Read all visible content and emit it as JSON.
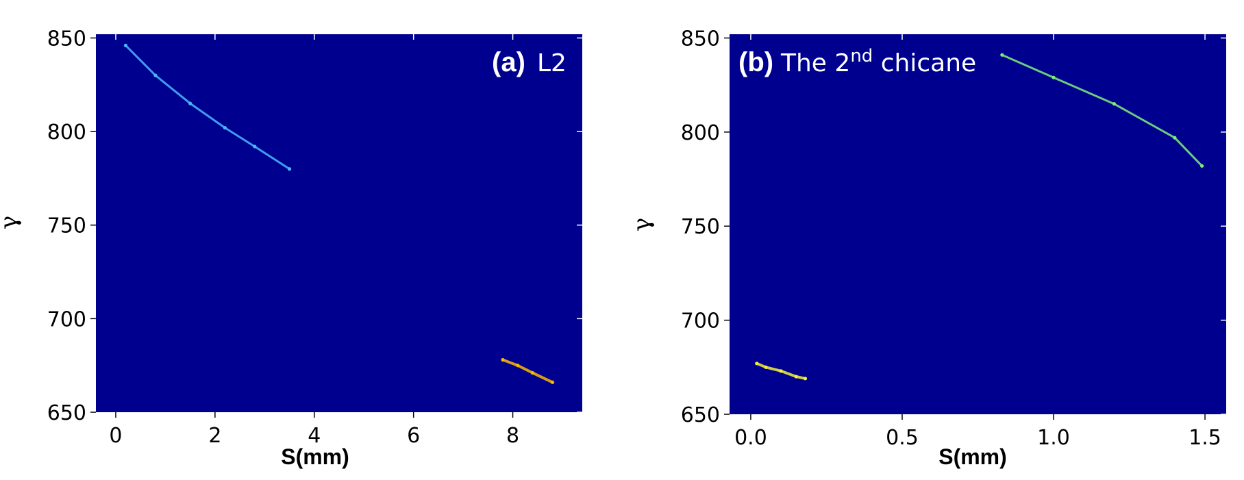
{
  "chart_data": [
    {
      "type": "scatter",
      "panel_tag": "(a)",
      "title": "L2",
      "xlabel": "S(mm)",
      "ylabel": "γ",
      "xlim": [
        -0.4,
        9.4
      ],
      "ylim": [
        650,
        852
      ],
      "xticks": [
        0,
        2,
        4,
        6,
        8
      ],
      "yticks": [
        650,
        700,
        750,
        800,
        850
      ],
      "background": "#00008f",
      "series": [
        {
          "x": [
            0.2,
            0.8,
            1.5,
            2.2,
            2.8,
            3.5
          ],
          "y": [
            846,
            830,
            815,
            802,
            792,
            780
          ],
          "color": "#49b8ff"
        },
        {
          "x": [
            7.8,
            8.1,
            8.4,
            8.8
          ],
          "y": [
            678,
            675,
            671,
            666
          ],
          "color": "#ffb800"
        }
      ]
    },
    {
      "type": "scatter",
      "panel_tag": "(b)",
      "title": "The 2",
      "title_sup": "nd",
      "title_rest": " chicane",
      "xlabel": "S(mm)",
      "ylabel": "γ",
      "xlim": [
        -0.07,
        1.57
      ],
      "ylim": [
        650,
        852
      ],
      "xticks": [
        "0.0",
        "0.5",
        "1.0",
        "1.5"
      ],
      "yticks": [
        650,
        700,
        750,
        800,
        850
      ],
      "background": "#00008f",
      "series": [
        {
          "x": [
            0.83,
            1.0,
            1.2,
            1.4,
            1.49
          ],
          "y": [
            841,
            829,
            815,
            797,
            782
          ],
          "color": "#7cf07a"
        },
        {
          "x": [
            0.02,
            0.05,
            0.1,
            0.15,
            0.18
          ],
          "y": [
            677,
            675,
            673,
            670,
            669
          ],
          "color": "#f6f03a"
        }
      ]
    }
  ]
}
